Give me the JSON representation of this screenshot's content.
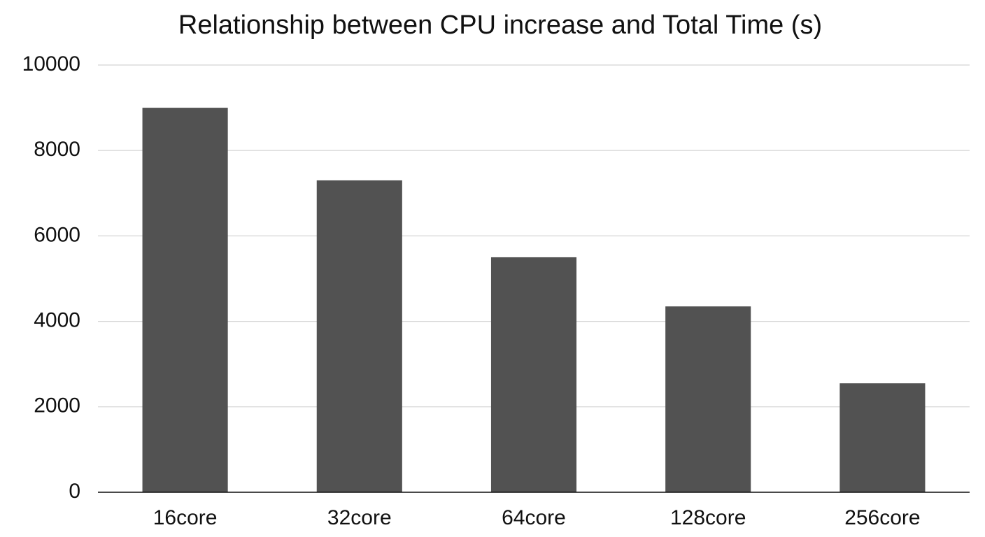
{
  "chart_data": {
    "type": "bar",
    "title": "Relationship between CPU increase and Total Time (s)",
    "categories": [
      "16core",
      "32core",
      "64core",
      "128core",
      "256core"
    ],
    "values": [
      9000,
      7300,
      5500,
      4350,
      2550
    ],
    "color": "#525252",
    "ylim": [
      0,
      10000
    ],
    "yticks": [
      0,
      2000,
      4000,
      6000,
      8000,
      10000
    ],
    "grid": true
  }
}
